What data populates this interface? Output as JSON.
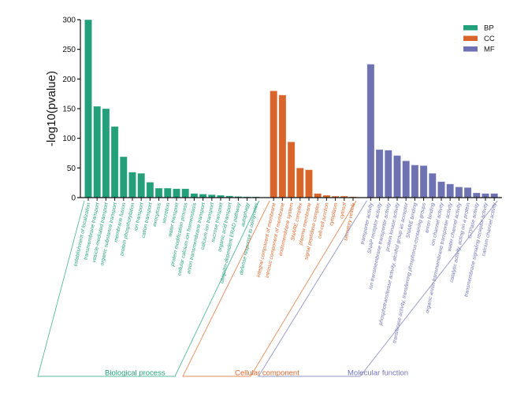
{
  "chart_data": {
    "type": "bar",
    "title": "",
    "xlabel": "",
    "ylabel": "-log10(pvalue)",
    "ylim": [
      0,
      300
    ],
    "yticks": [
      0,
      50,
      100,
      150,
      200,
      250,
      300
    ],
    "grid": false,
    "legend": {
      "placement": "top-right",
      "entries": [
        {
          "name": "BP",
          "color": "#23a07a"
        },
        {
          "name": "CC",
          "color": "#d9652a"
        },
        {
          "name": "MF",
          "color": "#6e72b3"
        }
      ]
    },
    "series": [
      {
        "name": "BP",
        "group_label": "Biological process",
        "color": "#23a07a",
        "categories": [
          "establishment of localization",
          "transmembrane transport",
          "vesicle-mediated transport",
          "organic substance transport",
          "membrane fusion",
          "protein phosphorylation",
          "ion transport",
          "cation transport",
          "exocytosis",
          "secretion",
          "water transport",
          "protein modification process",
          "cellular calcium ion homeostasis",
          "anion transmembrane transport",
          "calcium ion transport",
          "sucrose transport",
          "organic acid transport",
          "ubiquitin-dependent ERAD pathway",
          "autophagy",
          "defense response to oomycetes"
        ],
        "values": [
          300,
          154,
          150,
          120,
          69,
          43,
          41,
          26,
          16,
          16,
          15,
          15,
          7,
          6,
          5,
          4,
          3,
          2,
          1.5,
          1.5
        ]
      },
      {
        "name": "CC",
        "group_label": "Cellular component",
        "color": "#d9652a",
        "categories": [
          "integral component of membrane",
          "intrinsic component of membrane",
          "endomembrane system",
          "SNARE complex",
          "plasma membrane",
          "signal peptidase complex",
          "cell-cell junction",
          "cytoplasm",
          "cytosol",
          "secretory vesicle"
        ],
        "values": [
          180,
          173,
          94,
          50,
          47,
          7,
          4,
          2.5,
          2.5,
          1.5
        ]
      },
      {
        "name": "MF",
        "group_label": "Molecular function",
        "color": "#6e72b3",
        "categories": [
          "transporter activity",
          "SNAP receptor activity",
          "ion transmembrane transporter activity",
          "protein kinase activity",
          "phosphotransferase activity, alcohol group as acceptor",
          "SNARE binding",
          "transferase activity, transferring phosphorus-containing groups",
          "anion binding",
          "ion channel activity",
          "organic anion transmembrane transporter activity",
          "water channel activity",
          "catalytic activity, acting on a protein",
          "GTPase activity",
          "transmembrane signaling receptor activity",
          "calcium channel activity"
        ],
        "values": [
          225,
          81,
          80,
          71,
          62,
          55,
          54,
          41,
          27,
          23,
          18,
          17,
          8,
          7,
          7
        ]
      }
    ]
  }
}
